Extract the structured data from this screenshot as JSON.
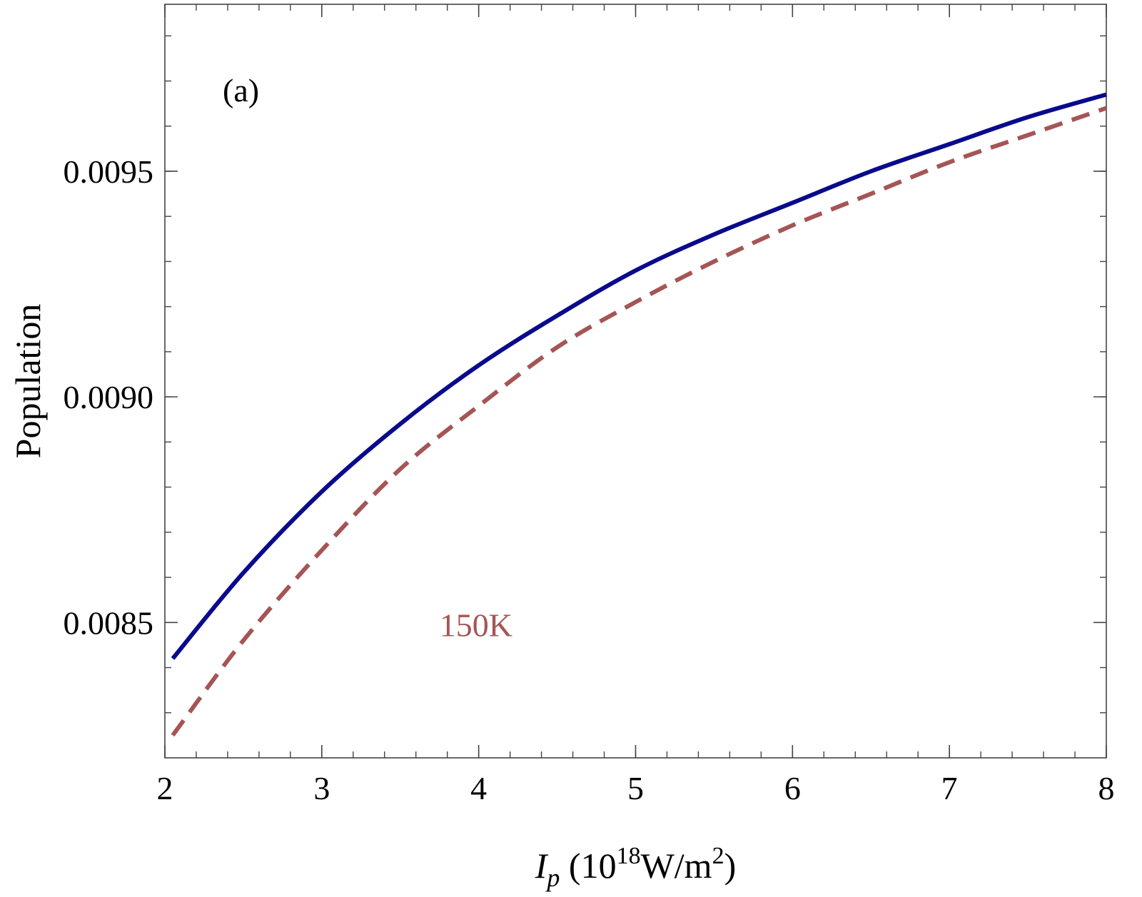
{
  "chart_data": {
    "type": "line",
    "panel_label": "(a)",
    "xlabel": {
      "symbol": "I",
      "subscript": "p",
      "prefix": " (10",
      "exponent": "18",
      "unit": "W/m",
      "unit_exponent": "2",
      "suffix": ")"
    },
    "ylabel": "Population",
    "xlim": [
      2,
      8
    ],
    "ylim": [
      0.0082,
      0.00987
    ],
    "x_ticks": [
      {
        "value": 2,
        "label": "2"
      },
      {
        "value": 3,
        "label": "3"
      },
      {
        "value": 4,
        "label": "4"
      },
      {
        "value": 5,
        "label": "5"
      },
      {
        "value": 6,
        "label": "6"
      },
      {
        "value": 7,
        "label": "7"
      },
      {
        "value": 8,
        "label": "8"
      }
    ],
    "y_ticks": [
      {
        "value": 0.0085,
        "label": "0.0085"
      },
      {
        "value": 0.009,
        "label": "0.0090"
      },
      {
        "value": 0.0095,
        "label": "0.0095"
      }
    ],
    "grid": false,
    "annotations": [
      {
        "text": "150K",
        "x": 3.75,
        "y": 0.00847,
        "color": "#a55555"
      }
    ],
    "series": [
      {
        "style": "solid",
        "color": "#0a0a8c",
        "x": [
          2.05,
          2.5,
          3.0,
          3.5,
          4.0,
          4.5,
          5.0,
          5.5,
          6.0,
          6.5,
          7.0,
          7.5,
          8.0
        ],
        "y": [
          0.00842,
          0.00861,
          0.00879,
          0.00894,
          0.00907,
          0.00918,
          0.00928,
          0.00936,
          0.00943,
          0.0095,
          0.00956,
          0.00962,
          0.00967
        ]
      },
      {
        "style": "dashed",
        "color": "#a55555",
        "x": [
          2.05,
          2.5,
          3.0,
          3.5,
          4.0,
          4.5,
          5.0,
          5.5,
          6.0,
          6.5,
          7.0,
          7.5,
          8.0
        ],
        "y": [
          0.00825,
          0.00846,
          0.00866,
          0.00884,
          0.00898,
          0.00911,
          0.00921,
          0.0093,
          0.00938,
          0.00945,
          0.00952,
          0.00958,
          0.00964
        ]
      }
    ]
  }
}
